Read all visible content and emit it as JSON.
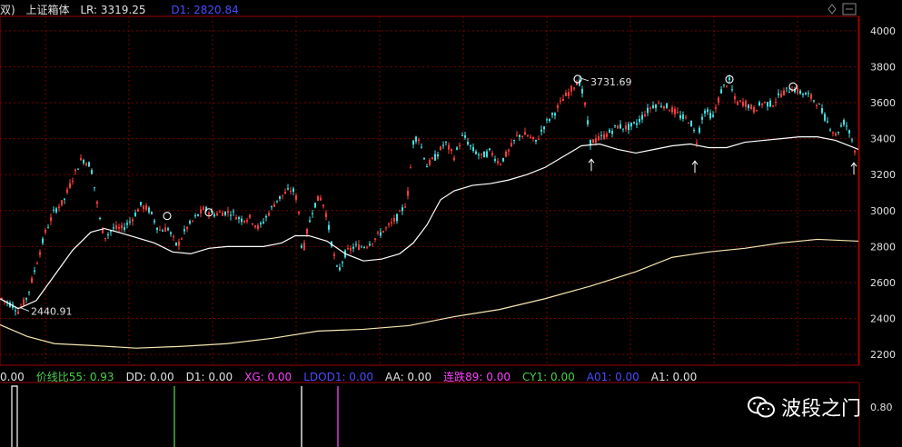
{
  "header": {
    "left_fragment": "双)",
    "title": "上证箱体",
    "lr_label": "LR:",
    "lr_value": "3319.25",
    "d1_label": "D1:",
    "d1_value": "2820.84"
  },
  "indicators": [
    {
      "label": "0.00",
      "color": "#e0e0e0"
    },
    {
      "label": "价线比55: 0.93",
      "color": "#4ad04a"
    },
    {
      "label": "DD: 0.00",
      "color": "#e0e0e0"
    },
    {
      "label": "D1: 0.00",
      "color": "#e0e0e0"
    },
    {
      "label": "XG: 0.00",
      "color": "#ff40ff"
    },
    {
      "label": "LDOD1: 0.00",
      "color": "#4a4aff"
    },
    {
      "label": "AA: 0.00",
      "color": "#e0e0e0"
    },
    {
      "label": "连跌89: 0.00",
      "color": "#ff40ff"
    },
    {
      "label": "CY1: 0.00",
      "color": "#4ad04a"
    },
    {
      "label": "A01: 0.00",
      "color": "#4a4aff"
    },
    {
      "label": "A1: 0.00",
      "color": "#e0e0e0"
    }
  ],
  "watermark": {
    "text": "波段之门",
    "icon": "wechat-icon"
  },
  "colors": {
    "up": "#ff3b3b",
    "down": "#40e0e0",
    "ma": "#ffffff",
    "ma_long": "#f5e6b0",
    "grid": "#7a0000"
  },
  "chart_data": {
    "type": "candlestick",
    "y_axis": {
      "ticks": [
        2200,
        2400,
        2600,
        2800,
        3000,
        3200,
        3400,
        3600,
        3800,
        4000
      ],
      "range": [
        2140,
        4080
      ]
    },
    "annotations": [
      {
        "text": "3731.69",
        "value": 3731.69,
        "marker": "high-circle"
      },
      {
        "text": "2440.91",
        "value": 2440.91,
        "marker": "low-arrow"
      }
    ],
    "price_path": [
      [
        0,
        2520
      ],
      [
        5,
        2500
      ],
      [
        15,
        2470
      ],
      [
        20,
        2440.91
      ],
      [
        30,
        2520
      ],
      [
        40,
        2700
      ],
      [
        50,
        2880
      ],
      [
        60,
        3000
      ],
      [
        70,
        3050
      ],
      [
        80,
        3180
      ],
      [
        90,
        3290
      ],
      [
        100,
        3250
      ],
      [
        110,
        2950
      ],
      [
        115,
        2850
      ],
      [
        125,
        2900
      ],
      [
        135,
        2900
      ],
      [
        145,
        2950
      ],
      [
        155,
        3030
      ],
      [
        165,
        3000
      ],
      [
        175,
        2890
      ],
      [
        185,
        2900
      ],
      [
        195,
        2800
      ],
      [
        205,
        2900
      ],
      [
        215,
        2960
      ],
      [
        225,
        3010
      ],
      [
        235,
        2980
      ],
      [
        245,
        2990
      ],
      [
        255,
        2990
      ],
      [
        265,
        2950
      ],
      [
        275,
        2960
      ],
      [
        285,
        2900
      ],
      [
        295,
        2980
      ],
      [
        305,
        3060
      ],
      [
        315,
        3100
      ],
      [
        322,
        3120
      ],
      [
        328,
        3050
      ],
      [
        333,
        2750
      ],
      [
        338,
        2880
      ],
      [
        345,
        3020
      ],
      [
        352,
        3080
      ],
      [
        358,
        3010
      ],
      [
        365,
        2820
      ],
      [
        372,
        2650
      ],
      [
        380,
        2760
      ],
      [
        390,
        2800
      ],
      [
        400,
        2800
      ],
      [
        410,
        2830
      ],
      [
        420,
        2880
      ],
      [
        430,
        2920
      ],
      [
        440,
        2980
      ],
      [
        448,
        3050
      ],
      [
        455,
        3380
      ],
      [
        460,
        3420
      ],
      [
        470,
        3250
      ],
      [
        480,
        3300
      ],
      [
        490,
        3380
      ],
      [
        500,
        3300
      ],
      [
        510,
        3420
      ],
      [
        520,
        3340
      ],
      [
        530,
        3300
      ],
      [
        540,
        3330
      ],
      [
        550,
        3260
      ],
      [
        560,
        3330
      ],
      [
        570,
        3420
      ],
      [
        580,
        3420
      ],
      [
        590,
        3380
      ],
      [
        600,
        3480
      ],
      [
        610,
        3540
      ],
      [
        620,
        3620
      ],
      [
        630,
        3680
      ],
      [
        637,
        3731.69
      ],
      [
        643,
        3620
      ],
      [
        650,
        3380
      ],
      [
        660,
        3400
      ],
      [
        670,
        3430
      ],
      [
        680,
        3470
      ],
      [
        690,
        3460
      ],
      [
        700,
        3480
      ],
      [
        710,
        3540
      ],
      [
        720,
        3590
      ],
      [
        730,
        3590
      ],
      [
        740,
        3560
      ],
      [
        750,
        3520
      ],
      [
        760,
        3500
      ],
      [
        767,
        3390
      ],
      [
        775,
        3560
      ],
      [
        785,
        3520
      ],
      [
        795,
        3680
      ],
      [
        803,
        3720
      ],
      [
        810,
        3600
      ],
      [
        820,
        3600
      ],
      [
        830,
        3560
      ],
      [
        840,
        3600
      ],
      [
        850,
        3590
      ],
      [
        860,
        3650
      ],
      [
        872,
        3680
      ],
      [
        880,
        3660
      ],
      [
        890,
        3640
      ],
      [
        900,
        3600
      ],
      [
        910,
        3500
      ],
      [
        920,
        3420
      ],
      [
        930,
        3500
      ],
      [
        940,
        3370
      ],
      [
        943,
        3280
      ],
      [
        945,
        3200
      ]
    ],
    "ma_short": [
      [
        0,
        2510
      ],
      [
        20,
        2455
      ],
      [
        40,
        2500
      ],
      [
        60,
        2640
      ],
      [
        80,
        2780
      ],
      [
        100,
        2880
      ],
      [
        115,
        2900
      ],
      [
        130,
        2880
      ],
      [
        150,
        2850
      ],
      [
        170,
        2820
      ],
      [
        190,
        2770
      ],
      [
        210,
        2760
      ],
      [
        230,
        2790
      ],
      [
        250,
        2800
      ],
      [
        270,
        2800
      ],
      [
        290,
        2800
      ],
      [
        310,
        2820
      ],
      [
        325,
        2860
      ],
      [
        340,
        2860
      ],
      [
        360,
        2830
      ],
      [
        380,
        2760
      ],
      [
        400,
        2720
      ],
      [
        420,
        2730
      ],
      [
        440,
        2760
      ],
      [
        455,
        2820
      ],
      [
        470,
        2920
      ],
      [
        485,
        3060
      ],
      [
        500,
        3110
      ],
      [
        520,
        3140
      ],
      [
        540,
        3150
      ],
      [
        560,
        3170
      ],
      [
        580,
        3200
      ],
      [
        600,
        3240
      ],
      [
        620,
        3300
      ],
      [
        640,
        3360
      ],
      [
        660,
        3370
      ],
      [
        680,
        3340
      ],
      [
        700,
        3320
      ],
      [
        720,
        3340
      ],
      [
        740,
        3360
      ],
      [
        760,
        3370
      ],
      [
        780,
        3350
      ],
      [
        800,
        3350
      ],
      [
        820,
        3380
      ],
      [
        840,
        3390
      ],
      [
        860,
        3400
      ],
      [
        880,
        3410
      ],
      [
        900,
        3410
      ],
      [
        920,
        3390
      ],
      [
        940,
        3350
      ],
      [
        945,
        3340
      ]
    ],
    "ma_long": [
      [
        0,
        2365
      ],
      [
        30,
        2300
      ],
      [
        60,
        2260
      ],
      [
        100,
        2250
      ],
      [
        150,
        2235
      ],
      [
        200,
        2245
      ],
      [
        250,
        2260
      ],
      [
        300,
        2290
      ],
      [
        350,
        2330
      ],
      [
        400,
        2340
      ],
      [
        450,
        2360
      ],
      [
        500,
        2410
      ],
      [
        550,
        2450
      ],
      [
        600,
        2510
      ],
      [
        650,
        2580
      ],
      [
        700,
        2660
      ],
      [
        740,
        2740
      ],
      [
        780,
        2770
      ],
      [
        820,
        2790
      ],
      [
        860,
        2820
      ],
      [
        900,
        2840
      ],
      [
        945,
        2830
      ]
    ],
    "volume_bars": [
      {
        "x": 17,
        "color": "#ffffff"
      },
      {
        "x": 192,
        "color": "#4ad04a"
      },
      {
        "x": 332,
        "color": "#ffffff"
      },
      {
        "x": 372,
        "color": "#ff40ff"
      }
    ],
    "lower_axis": {
      "ticks": [
        0.8
      ]
    }
  }
}
